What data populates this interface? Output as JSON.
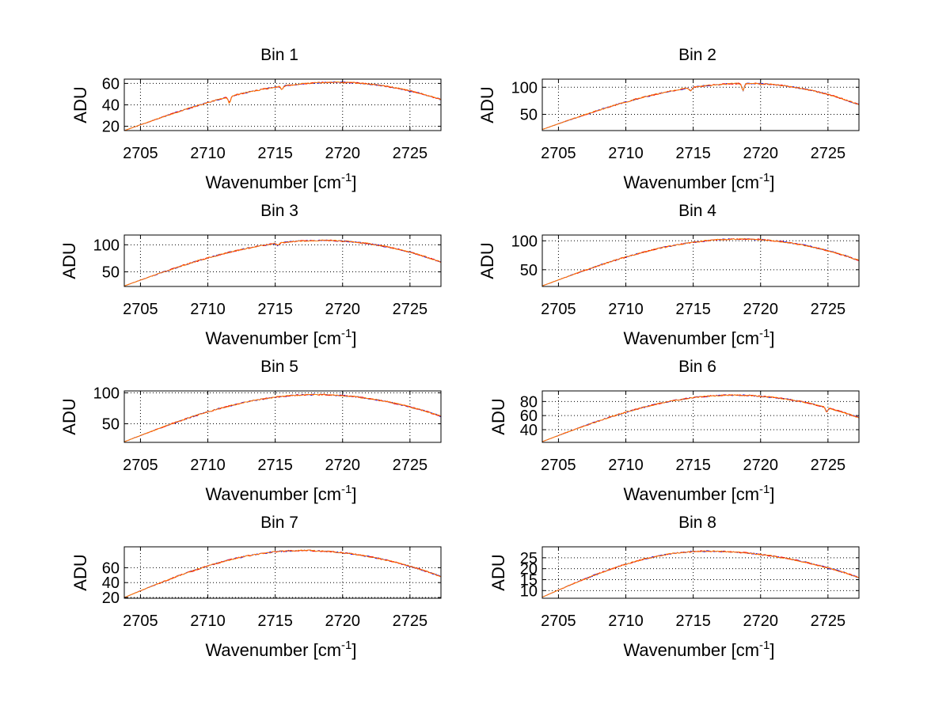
{
  "chart_data": [
    {
      "type": "line",
      "title": "Bin 1",
      "xlabel": "Wavenumber [cm",
      "xlabel_sup": "-1",
      "xlabel_suffix": "]",
      "ylabel": "ADU",
      "xlim": [
        2703.8,
        2727.3
      ],
      "ylim": [
        16,
        64
      ],
      "xticks": [
        2705,
        2710,
        2715,
        2720,
        2725
      ],
      "yticks": [
        20,
        40,
        60
      ],
      "grid": true,
      "curve": {
        "start": 16,
        "peak": 61,
        "peak_x": 2719.5,
        "end": 45
      },
      "dips": [
        {
          "x": 2711.6,
          "depth": 6
        },
        {
          "x": 2715.5,
          "depth": 3
        }
      ],
      "series": [
        {
          "color": "#0000ff"
        },
        {
          "color": "#ff0000"
        },
        {
          "color": "#ff8800"
        }
      ]
    },
    {
      "type": "line",
      "title": "Bin 2",
      "xlabel": "Wavenumber [cm",
      "xlabel_sup": "-1",
      "xlabel_suffix": "]",
      "ylabel": "ADU",
      "xlim": [
        2703.8,
        2727.3
      ],
      "ylim": [
        20,
        115
      ],
      "xticks": [
        2705,
        2710,
        2715,
        2720,
        2725
      ],
      "yticks": [
        50,
        100
      ],
      "grid": true,
      "curve": {
        "start": 22,
        "peak": 107,
        "peak_x": 2719,
        "end": 68
      },
      "dips": [
        {
          "x": 2718.7,
          "depth": 13
        },
        {
          "x": 2714.8,
          "depth": 6
        }
      ],
      "series": [
        {
          "color": "#0000ff"
        },
        {
          "color": "#ff0000"
        },
        {
          "color": "#ff8800"
        }
      ]
    },
    {
      "type": "line",
      "title": "Bin 3",
      "xlabel": "Wavenumber [cm",
      "xlabel_sup": "-1",
      "xlabel_suffix": "]",
      "ylabel": "ADU",
      "xlim": [
        2703.8,
        2727.3
      ],
      "ylim": [
        23,
        118
      ],
      "xticks": [
        2705,
        2710,
        2715,
        2720,
        2725
      ],
      "yticks": [
        50,
        100
      ],
      "grid": true,
      "curve": {
        "start": 24,
        "peak": 108,
        "peak_x": 2718.5,
        "end": 68
      },
      "dips": [
        {
          "x": 2715.2,
          "depth": 4
        }
      ],
      "series": [
        {
          "color": "#0000ff"
        },
        {
          "color": "#ff0000"
        },
        {
          "color": "#ff8800"
        }
      ]
    },
    {
      "type": "line",
      "title": "Bin 4",
      "xlabel": "Wavenumber [cm",
      "xlabel_sup": "-1",
      "xlabel_suffix": "]",
      "ylabel": "ADU",
      "xlim": [
        2703.8,
        2727.3
      ],
      "ylim": [
        21,
        110
      ],
      "xticks": [
        2705,
        2710,
        2715,
        2720,
        2725
      ],
      "yticks": [
        50,
        100
      ],
      "grid": true,
      "curve": {
        "start": 22,
        "peak": 103,
        "peak_x": 2718.5,
        "end": 66
      },
      "dips": [],
      "series": [
        {
          "color": "#0000ff"
        },
        {
          "color": "#ff0000"
        },
        {
          "color": "#ff8800"
        }
      ]
    },
    {
      "type": "line",
      "title": "Bin 5",
      "xlabel": "Wavenumber [cm",
      "xlabel_sup": "-1",
      "xlabel_suffix": "]",
      "ylabel": "ADU",
      "xlim": [
        2703.8,
        2727.3
      ],
      "ylim": [
        20,
        103
      ],
      "xticks": [
        2705,
        2710,
        2715,
        2720,
        2725
      ],
      "yticks": [
        50,
        100
      ],
      "grid": true,
      "curve": {
        "start": 21,
        "peak": 97,
        "peak_x": 2718,
        "end": 62
      },
      "dips": [],
      "series": [
        {
          "color": "#0000ff"
        },
        {
          "color": "#ff0000"
        },
        {
          "color": "#ff8800"
        }
      ]
    },
    {
      "type": "line",
      "title": "Bin 6",
      "xlabel": "Wavenumber [cm",
      "xlabel_sup": "-1",
      "xlabel_suffix": "]",
      "ylabel": "ADU",
      "xlim": [
        2703.8,
        2727.3
      ],
      "ylim": [
        22,
        95
      ],
      "xticks": [
        2705,
        2710,
        2715,
        2720,
        2725
      ],
      "yticks": [
        40,
        60,
        80
      ],
      "grid": true,
      "curve": {
        "start": 23,
        "peak": 89,
        "peak_x": 2718,
        "end": 57
      },
      "dips": [
        {
          "x": 2724.9,
          "depth": 6
        }
      ],
      "series": [
        {
          "color": "#0000ff"
        },
        {
          "color": "#ff0000"
        },
        {
          "color": "#ff8800"
        }
      ]
    },
    {
      "type": "line",
      "title": "Bin 7",
      "xlabel": "Wavenumber [cm",
      "xlabel_sup": "-1",
      "xlabel_suffix": "]",
      "ylabel": "ADU",
      "xlim": [
        2703.8,
        2727.3
      ],
      "ylim": [
        19,
        88
      ],
      "xticks": [
        2705,
        2710,
        2715,
        2720,
        2725
      ],
      "yticks": [
        20,
        40,
        60
      ],
      "grid": true,
      "curve": {
        "start": 20,
        "peak": 83,
        "peak_x": 2717,
        "end": 48
      },
      "dips": [],
      "series": [
        {
          "color": "#0000ff"
        },
        {
          "color": "#ff0000"
        },
        {
          "color": "#ff8800"
        }
      ]
    },
    {
      "type": "line",
      "title": "Bin 8",
      "xlabel": "Wavenumber [cm",
      "xlabel_sup": "-1",
      "xlabel_suffix": "]",
      "ylabel": "ADU",
      "xlim": [
        2703.8,
        2727.3
      ],
      "ylim": [
        6.5,
        30
      ],
      "xticks": [
        2705,
        2710,
        2715,
        2720,
        2725
      ],
      "yticks": [
        10,
        15,
        20,
        25
      ],
      "grid": true,
      "curve": {
        "start": 7,
        "peak": 28,
        "peak_x": 2716,
        "end": 16
      },
      "dips": [],
      "series": [
        {
          "color": "#0000ff"
        },
        {
          "color": "#ff0000"
        },
        {
          "color": "#ff8800"
        }
      ]
    }
  ]
}
